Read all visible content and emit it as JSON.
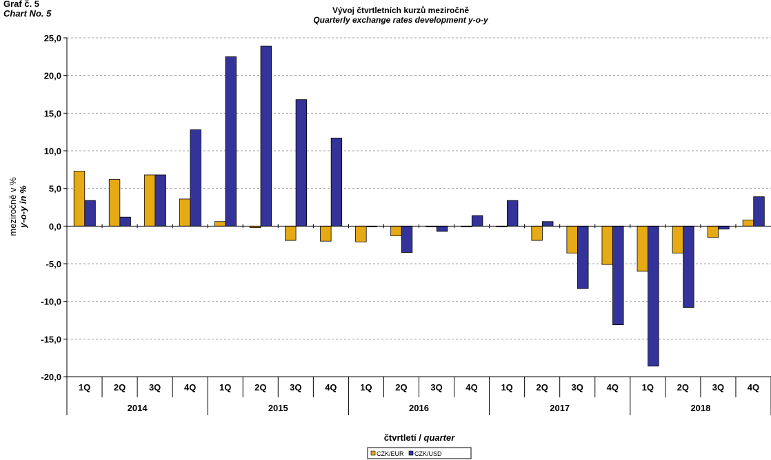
{
  "page": {
    "label_cz": "Graf č. 5",
    "label_en": "Chart No. 5"
  },
  "chart_data": {
    "type": "bar",
    "title": "Vývoj čtvrtletních kurzů meziročně",
    "subtitle": "Quarterly exchange rates development y-o-y",
    "ylabel": "meziročně v %",
    "ylabel_en": "y-o-y in %",
    "xlabel": "čtvrtletí / ",
    "xlabel_en": "quarter",
    "ylim": [
      -20,
      25
    ],
    "ytick_step": 5,
    "ytick_labels": [
      "25,0",
      "20,0",
      "15,0",
      "10,0",
      "5,0",
      "0,0",
      "-5,0",
      "-10,0",
      "-15,0",
      "-20,0"
    ],
    "grid": true,
    "legend_position": "bottom-center",
    "categories": [
      "1Q",
      "2Q",
      "3Q",
      "4Q",
      "1Q",
      "2Q",
      "3Q",
      "4Q",
      "1Q",
      "2Q",
      "3Q",
      "4Q",
      "1Q",
      "2Q",
      "3Q",
      "4Q",
      "1Q",
      "2Q",
      "3Q",
      "4Q"
    ],
    "years": [
      "2014",
      "2015",
      "2016",
      "2017",
      "2018"
    ],
    "series": [
      {
        "name": "CZK/EUR",
        "color": "#E6AA14",
        "values": [
          7.3,
          6.2,
          6.8,
          3.6,
          0.6,
          -0.2,
          -1.9,
          -2.0,
          -2.1,
          -1.3,
          -0.1,
          -0.1,
          -0.1,
          -1.9,
          -3.6,
          -5.1,
          -6.0,
          -3.6,
          -1.5,
          0.8
        ]
      },
      {
        "name": "CZK/USD",
        "color": "#333399",
        "values": [
          3.4,
          1.2,
          6.8,
          12.8,
          22.5,
          23.9,
          16.8,
          11.7,
          -0.1,
          -3.5,
          -0.7,
          1.4,
          3.4,
          0.6,
          -8.3,
          -13.1,
          -18.6,
          -10.8,
          -0.4,
          3.9
        ]
      }
    ]
  }
}
